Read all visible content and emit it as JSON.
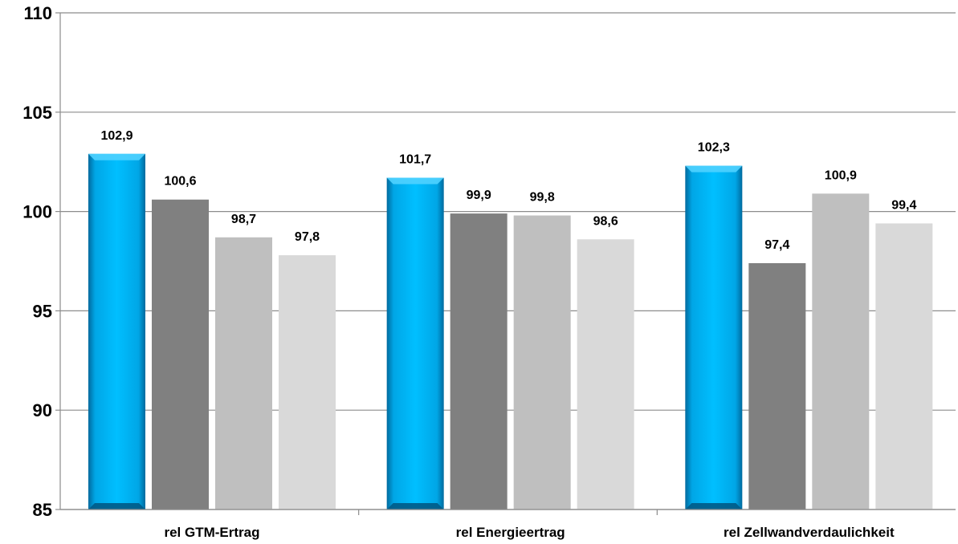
{
  "chart_data": {
    "type": "bar",
    "categories": [
      "rel GTM-Ertrag",
      "rel Energieertrag",
      "rel Zellwandverdaulichkeit"
    ],
    "series": [
      {
        "values": [
          102.9,
          101.7,
          102.3
        ],
        "labels": [
          "102,9",
          "101,7",
          "102,3"
        ],
        "color": "#00b4f0"
      },
      {
        "values": [
          100.6,
          99.9,
          97.4
        ],
        "labels": [
          "100,6",
          "99,9",
          "97,4"
        ],
        "color": "#808080"
      },
      {
        "values": [
          98.7,
          99.8,
          100.9
        ],
        "labels": [
          "98,7",
          "99,8",
          "100,9"
        ],
        "color": "#bfbfbf"
      },
      {
        "values": [
          97.8,
          98.6,
          99.4
        ],
        "labels": [
          "97,8",
          "98,6",
          "99,4"
        ],
        "color": "#d9d9d9"
      }
    ],
    "ylim": [
      85,
      110
    ],
    "yticks": [
      85,
      90,
      95,
      100,
      105,
      110
    ],
    "grid": true,
    "legend": "none",
    "xlabel": "",
    "ylabel": ""
  }
}
